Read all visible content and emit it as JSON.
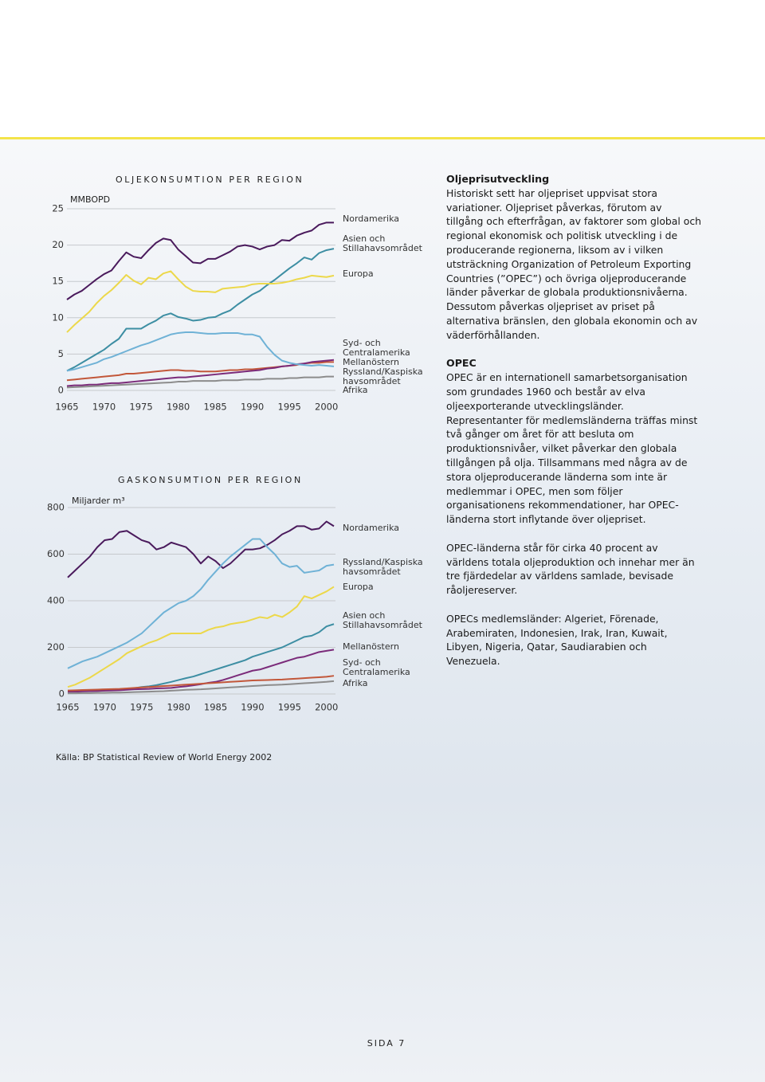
{
  "chart_data": [
    {
      "type": "line",
      "title": "OLJEKONSUMTION PER REGION",
      "y_label": "MMBOPD",
      "x": [
        1965,
        1966,
        1967,
        1968,
        1969,
        1970,
        1971,
        1972,
        1973,
        1974,
        1975,
        1976,
        1977,
        1978,
        1979,
        1980,
        1981,
        1982,
        1983,
        1984,
        1985,
        1986,
        1987,
        1988,
        1989,
        1990,
        1991,
        1992,
        1993,
        1994,
        1995,
        1996,
        1997,
        1998,
        1999,
        2000,
        2001
      ],
      "xlim": [
        1965,
        2001
      ],
      "xticks": [
        1965,
        1970,
        1975,
        1980,
        1985,
        1990,
        1995,
        2000
      ],
      "ylim": [
        0,
        25
      ],
      "yticks": [
        0,
        5,
        10,
        15,
        20,
        25
      ],
      "grid": true,
      "series": [
        {
          "name": "Nordamerika",
          "color": "#4a1a5c",
          "values": [
            12.5,
            13.2,
            13.7,
            14.5,
            15.3,
            16.0,
            16.5,
            17.8,
            19.0,
            18.4,
            18.2,
            19.3,
            20.3,
            20.9,
            20.7,
            19.4,
            18.5,
            17.6,
            17.5,
            18.1,
            18.1,
            18.6,
            19.1,
            19.8,
            20.0,
            19.8,
            19.4,
            19.8,
            20.0,
            20.7,
            20.6,
            21.3,
            21.7,
            22.0,
            22.8,
            23.1,
            23.1
          ]
        },
        {
          "name": "Asien och Stillahavsområdet",
          "color": "#3d8ea3",
          "values": [
            2.7,
            3.2,
            3.8,
            4.4,
            5.0,
            5.6,
            6.4,
            7.1,
            8.5,
            8.5,
            8.5,
            9.1,
            9.6,
            10.3,
            10.6,
            10.1,
            9.9,
            9.6,
            9.7,
            10.0,
            10.1,
            10.6,
            11.0,
            11.8,
            12.5,
            13.2,
            13.7,
            14.5,
            15.2,
            16.0,
            16.8,
            17.5,
            18.3,
            18.0,
            18.9,
            19.3,
            19.5
          ]
        },
        {
          "name": "Europa",
          "color": "#ecd84a",
          "values": [
            8.0,
            9.0,
            9.9,
            10.8,
            12.0,
            13.0,
            13.8,
            14.8,
            15.9,
            15.1,
            14.6,
            15.5,
            15.3,
            16.1,
            16.4,
            15.3,
            14.3,
            13.7,
            13.6,
            13.6,
            13.5,
            14.0,
            14.1,
            14.2,
            14.3,
            14.6,
            14.7,
            14.7,
            14.7,
            14.8,
            15.0,
            15.3,
            15.5,
            15.8,
            15.7,
            15.6,
            15.8
          ]
        },
        {
          "name": "Syd- och Centralamerika",
          "color": "#c2573a",
          "values": [
            1.4,
            1.5,
            1.6,
            1.7,
            1.8,
            1.9,
            2.0,
            2.1,
            2.3,
            2.3,
            2.4,
            2.5,
            2.6,
            2.7,
            2.8,
            2.8,
            2.7,
            2.7,
            2.6,
            2.6,
            2.6,
            2.7,
            2.8,
            2.8,
            2.9,
            2.9,
            3.0,
            3.1,
            3.2,
            3.3,
            3.4,
            3.5,
            3.7,
            3.8,
            3.8,
            3.9,
            3.9
          ]
        },
        {
          "name": "Mellanöstern",
          "color": "#7b2b7a",
          "values": [
            0.6,
            0.7,
            0.7,
            0.8,
            0.8,
            0.9,
            1.0,
            1.0,
            1.1,
            1.2,
            1.3,
            1.4,
            1.5,
            1.6,
            1.7,
            1.8,
            1.8,
            1.9,
            2.0,
            2.1,
            2.2,
            2.3,
            2.4,
            2.5,
            2.6,
            2.7,
            2.8,
            3.0,
            3.1,
            3.3,
            3.4,
            3.6,
            3.7,
            3.9,
            4.0,
            4.1,
            4.2
          ]
        },
        {
          "name": "Ryssland/Kaspiska havsområdet",
          "color": "#6fb2d6",
          "values": [
            2.7,
            2.9,
            3.2,
            3.5,
            3.8,
            4.3,
            4.6,
            5.0,
            5.4,
            5.8,
            6.2,
            6.5,
            6.9,
            7.3,
            7.7,
            7.9,
            8.0,
            8.0,
            7.9,
            7.8,
            7.8,
            7.9,
            7.9,
            7.9,
            7.7,
            7.7,
            7.4,
            6.0,
            4.9,
            4.1,
            3.8,
            3.6,
            3.5,
            3.4,
            3.5,
            3.4,
            3.3
          ]
        },
        {
          "name": "Afrika",
          "color": "#8c8c8c",
          "values": [
            0.4,
            0.45,
            0.5,
            0.55,
            0.6,
            0.65,
            0.7,
            0.75,
            0.8,
            0.85,
            0.9,
            0.95,
            1.0,
            1.05,
            1.1,
            1.2,
            1.2,
            1.3,
            1.3,
            1.3,
            1.3,
            1.4,
            1.4,
            1.4,
            1.5,
            1.5,
            1.5,
            1.6,
            1.6,
            1.6,
            1.7,
            1.7,
            1.8,
            1.8,
            1.8,
            1.9,
            1.9
          ]
        }
      ]
    },
    {
      "type": "line",
      "title": "GASKONSUMTION PER REGION",
      "y_label": "Miljarder m³",
      "x": [
        1965,
        1966,
        1967,
        1968,
        1969,
        1970,
        1971,
        1972,
        1973,
        1974,
        1975,
        1976,
        1977,
        1978,
        1979,
        1980,
        1981,
        1982,
        1983,
        1984,
        1985,
        1986,
        1987,
        1988,
        1989,
        1990,
        1991,
        1992,
        1993,
        1994,
        1995,
        1996,
        1997,
        1998,
        1999,
        2000,
        2001
      ],
      "xlim": [
        1965,
        2001
      ],
      "xticks": [
        1965,
        1970,
        1975,
        1980,
        1985,
        1990,
        1995,
        2000
      ],
      "ylim": [
        0,
        800
      ],
      "yticks": [
        0,
        200,
        400,
        600,
        800
      ],
      "grid": true,
      "series": [
        {
          "name": "Nordamerika",
          "color": "#4a1a5c",
          "values": [
            500,
            530,
            560,
            590,
            630,
            660,
            665,
            695,
            700,
            680,
            660,
            650,
            620,
            630,
            650,
            640,
            630,
            600,
            560,
            590,
            570,
            540,
            560,
            590,
            620,
            620,
            625,
            640,
            660,
            685,
            700,
            720,
            720,
            705,
            710,
            740,
            720
          ]
        },
        {
          "name": "Ryssland/Kaspiska havsområdet",
          "color": "#6fb2d6",
          "values": [
            110,
            125,
            140,
            150,
            160,
            175,
            190,
            205,
            220,
            240,
            260,
            290,
            320,
            350,
            370,
            390,
            400,
            420,
            450,
            490,
            525,
            560,
            590,
            615,
            640,
            665,
            665,
            630,
            600,
            560,
            545,
            550,
            520,
            525,
            530,
            550,
            555
          ]
        },
        {
          "name": "Europa",
          "color": "#ecd84a",
          "values": [
            30,
            40,
            55,
            70,
            90,
            110,
            130,
            150,
            175,
            190,
            205,
            220,
            230,
            245,
            260,
            260,
            260,
            260,
            260,
            275,
            285,
            290,
            300,
            305,
            310,
            320,
            330,
            325,
            340,
            330,
            350,
            375,
            420,
            410,
            425,
            440,
            460
          ]
        },
        {
          "name": "Asien och Stillahavsområdet",
          "color": "#3d8ea3",
          "values": [
            10,
            11,
            12,
            13,
            14,
            15,
            18,
            20,
            22,
            25,
            30,
            33,
            38,
            45,
            52,
            60,
            68,
            75,
            85,
            95,
            105,
            115,
            125,
            135,
            145,
            160,
            170,
            180,
            190,
            200,
            215,
            230,
            245,
            250,
            265,
            290,
            300
          ]
        },
        {
          "name": "Mellanöstern",
          "color": "#7b2b7a",
          "values": [
            10,
            10,
            11,
            12,
            13,
            14,
            15,
            16,
            18,
            20,
            21,
            22,
            24,
            25,
            26,
            30,
            33,
            37,
            42,
            48,
            52,
            60,
            70,
            80,
            90,
            100,
            105,
            115,
            125,
            135,
            145,
            155,
            160,
            170,
            180,
            185,
            190
          ]
        },
        {
          "name": "Syd- och Centralamerika",
          "color": "#c2573a",
          "values": [
            15,
            16,
            17,
            18,
            19,
            20,
            21,
            22,
            24,
            26,
            28,
            30,
            32,
            34,
            36,
            38,
            40,
            42,
            44,
            46,
            48,
            50,
            52,
            54,
            56,
            58,
            59,
            60,
            61,
            62,
            64,
            66,
            68,
            70,
            72,
            74,
            78
          ]
        },
        {
          "name": "Afrika",
          "color": "#8c8c8c",
          "values": [
            3,
            3,
            4,
            4,
            5,
            5,
            6,
            6,
            7,
            8,
            9,
            10,
            11,
            12,
            14,
            16,
            18,
            19,
            20,
            22,
            24,
            26,
            28,
            30,
            32,
            34,
            36,
            38,
            39,
            40,
            42,
            44,
            46,
            48,
            50,
            52,
            55
          ]
        }
      ]
    }
  ],
  "sidebar": {
    "sections": [
      {
        "heading": "Oljeprisutveckling",
        "paragraphs": [
          "Historiskt sett har oljepriset uppvisat stora variationer. Oljepriset påverkas, förutom av tillgång och efterfrågan, av faktorer som global och regional ekonomisk och politisk utveckling i de producerande regionerna, liksom av i vilken utsträckning Organization of Petroleum Exporting Countries (”OPEC”) och övriga oljeproducerande länder påverkar de globala produktionsnivåerna. Dessutom påverkas oljepriset av priset på alternativa bränslen, den globala ekonomin och av väderförhållanden."
        ]
      },
      {
        "heading": "OPEC",
        "paragraphs": [
          "OPEC är en internationell samarbetsorganisation som grundades 1960 och består av elva oljeexporterande utvecklingsländer. Representanter för medlemsländerna träffas minst två gånger om året för att besluta om produktionsnivåer, vilket påverkar den globala tillgången på olja. Tillsammans med några av de stora oljeproducerande länderna som inte är medlemmar i OPEC, men som följer organisationens rekommendationer, har OPEC-länderna stort inflytande över oljepriset.",
          "OPEC-länderna står för cirka 40 procent av världens totala oljeproduktion och innehar mer än tre fjärdedelar av världens samlade, bevisade råoljereserver.",
          "OPECs medlemsländer: Algeriet, Förenade, Arabemiraten, Indonesien, Irak, Iran, Kuwait, Libyen, Nigeria, Qatar, Saudiarabien och Venezuela."
        ]
      }
    ]
  },
  "source": "Källa: BP Statistical Review of World Energy 2002",
  "page_number": "SIDA 7"
}
